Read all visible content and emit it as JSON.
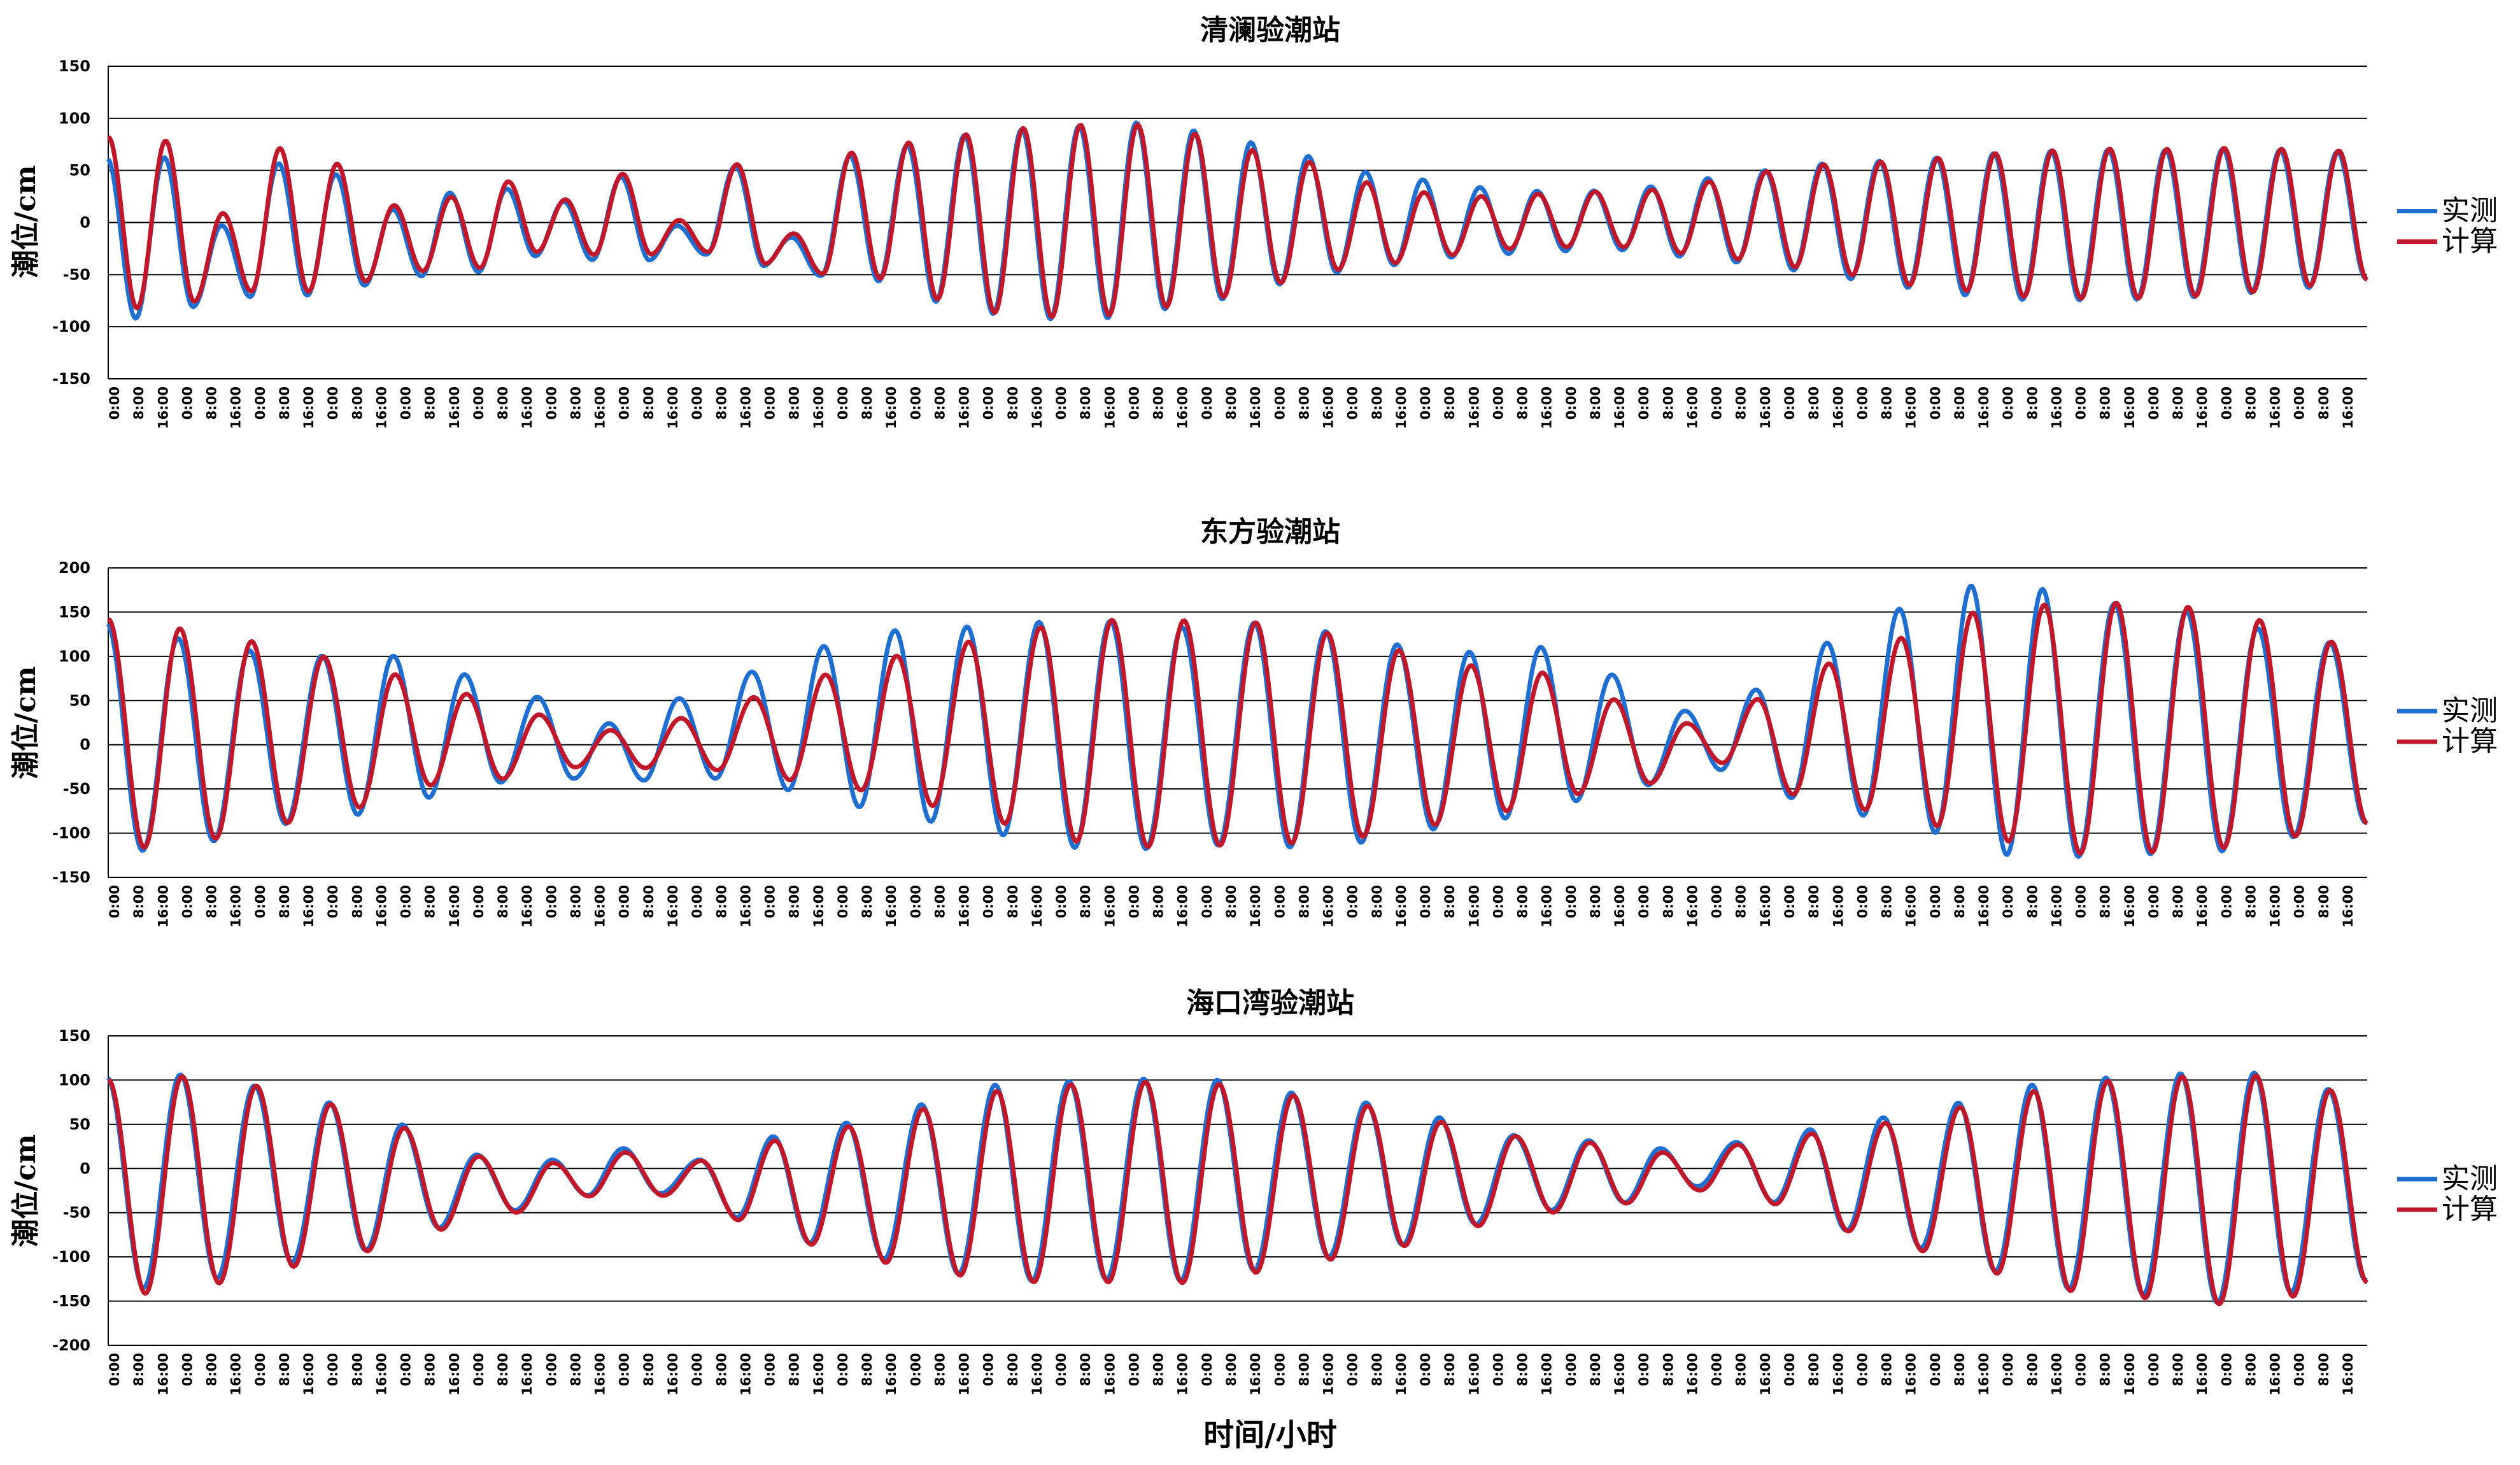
{
  "x_axis_label": "时间/小时",
  "legend": {
    "measured": "实测",
    "computed": "计算"
  },
  "colors": {
    "measured": "#1f6fd1",
    "computed": "#c0182a",
    "grid": "#000000"
  },
  "chart_data": [
    {
      "type": "line",
      "title": "清澜验潮站",
      "ylabel": "潮位/cm",
      "ylim": [
        -150,
        150
      ],
      "yticks": [
        "150",
        "100",
        "50",
        "0",
        "-50",
        "-100",
        "-150"
      ],
      "xtick_labels": [
        "0:00",
        "8:00",
        "16:00",
        "0:00",
        "8:00",
        "16:00",
        "0:00",
        "8:00",
        "16:00",
        "0:00",
        "8:00",
        "16:00",
        "0:00",
        "8:00",
        "16:00",
        "0:00",
        "8:00",
        "16:00",
        "0:00",
        "8:00",
        "16:00",
        "0:00",
        "8:00",
        "16:00",
        "0:00",
        "8:00",
        "16:00",
        "0:00",
        "8:00",
        "16:00",
        "0:00",
        "8:00",
        "16:00",
        "0:00",
        "8:00",
        "16:00",
        "0:00",
        "8:00",
        "16:00",
        "0:00",
        "8:00",
        "16:00",
        "0:00",
        "8:00",
        "16:00",
        "0:00",
        "8:00",
        "16:00",
        "0:00",
        "8:00",
        "16:00",
        "0:00",
        "8:00",
        "16:00",
        "0:00",
        "8:00",
        "16:00",
        "0:00",
        "8:00",
        "16:00",
        "0:00",
        "8:00",
        "16:00",
        "0:00",
        "8:00",
        "16:00",
        "0:00",
        "8:00",
        "16:00",
        "0:00",
        "8:00",
        "16:00",
        "0:00",
        "8:00",
        "16:00",
        "0:00",
        "8:00",
        "16:00",
        "0:00",
        "8:00",
        "16:00",
        "0:00",
        "8:00",
        "16:00",
        "0:00",
        "8:00",
        "16:00",
        "0:00",
        "8:00",
        "16:00",
        "0:00",
        "8:00",
        "16:00"
      ],
      "tide_kind": "diurnal",
      "series": [
        {
          "name": "实测",
          "peaks": [
            [
              62,
              -92
            ],
            [
              62,
              -80
            ],
            [
              -4,
              -70
            ],
            [
              55,
              -68
            ],
            [
              44,
              -58
            ],
            [
              10,
              -49
            ],
            [
              26,
              -45
            ],
            [
              30,
              -30
            ],
            [
              18,
              -34
            ],
            [
              42,
              -35
            ],
            [
              -4,
              -30
            ],
            [
              54,
              -42
            ],
            [
              -14,
              -52
            ],
            [
              65,
              -58
            ],
            [
              76,
              -78
            ],
            [
              86,
              -90
            ],
            [
              92,
              -95
            ],
            [
              95,
              -94
            ],
            [
              98,
              -85
            ],
            [
              90,
              -75
            ],
            [
              78,
              -60
            ],
            [
              64,
              -48
            ],
            [
              48,
              -40
            ],
            [
              40,
              -32
            ],
            [
              32,
              -28
            ],
            [
              28,
              -25
            ],
            [
              28,
              -24
            ],
            [
              32,
              -30
            ],
            [
              40,
              -36
            ],
            [
              48,
              -44
            ],
            [
              55,
              -53
            ],
            [
              58,
              -62
            ],
            [
              62,
              -70
            ],
            [
              67,
              -75
            ],
            [
              70,
              -76
            ],
            [
              72,
              -76
            ],
            [
              72,
              -74
            ],
            [
              73,
              -70
            ],
            [
              72,
              -65
            ],
            [
              70,
              -56
            ]
          ]
        },
        {
          "name": "计算",
          "peaks": [
            [
              82,
              -82
            ],
            [
              78,
              -75
            ],
            [
              8,
              -65
            ],
            [
              70,
              -65
            ],
            [
              55,
              -55
            ],
            [
              15,
              -45
            ],
            [
              23,
              -42
            ],
            [
              38,
              -27
            ],
            [
              21,
              -30
            ],
            [
              46,
              -30
            ],
            [
              2,
              -28
            ],
            [
              56,
              -40
            ],
            [
              -10,
              -50
            ],
            [
              68,
              -55
            ],
            [
              78,
              -75
            ],
            [
              86,
              -88
            ],
            [
              92,
              -92
            ],
            [
              95,
              -90
            ],
            [
              95,
              -82
            ],
            [
              86,
              -72
            ],
            [
              70,
              -58
            ],
            [
              58,
              -45
            ],
            [
              38,
              -38
            ],
            [
              28,
              -30
            ],
            [
              24,
              -24
            ],
            [
              26,
              -22
            ],
            [
              28,
              -22
            ],
            [
              30,
              -28
            ],
            [
              38,
              -34
            ],
            [
              48,
              -42
            ],
            [
              55,
              -50
            ],
            [
              58,
              -60
            ],
            [
              62,
              -66
            ],
            [
              67,
              -72
            ],
            [
              70,
              -74
            ],
            [
              72,
              -74
            ],
            [
              72,
              -72
            ],
            [
              73,
              -68
            ],
            [
              72,
              -62
            ],
            [
              70,
              -56
            ]
          ]
        }
      ]
    },
    {
      "type": "line",
      "title": "东方验潮站",
      "ylabel": "潮位/cm",
      "ylim": [
        -150,
        200
      ],
      "yticks": [
        "200",
        "150",
        "100",
        "50",
        "0",
        "-50",
        "-100",
        "-150"
      ],
      "xtick_labels": [
        "0:00",
        "8:00",
        "16:00",
        "0:00",
        "8:00",
        "16:00",
        "0:00",
        "8:00",
        "16:00",
        "0:00",
        "8:00",
        "16:00",
        "0:00",
        "8:00",
        "16:00",
        "0:00",
        "8:00",
        "16:00",
        "0:00",
        "8:00",
        "16:00",
        "0:00",
        "8:00",
        "16:00",
        "0:00",
        "8:00",
        "16:00",
        "0:00",
        "8:00",
        "16:00",
        "0:00",
        "8:00",
        "16:00",
        "0:00",
        "8:00",
        "16:00",
        "0:00",
        "8:00",
        "16:00",
        "0:00",
        "8:00",
        "16:00",
        "0:00",
        "8:00",
        "16:00",
        "0:00",
        "8:00",
        "16:00",
        "0:00",
        "8:00",
        "16:00",
        "0:00",
        "8:00",
        "16:00",
        "0:00",
        "8:00",
        "16:00",
        "0:00",
        "8:00",
        "16:00",
        "0:00",
        "8:00",
        "16:00",
        "0:00",
        "8:00",
        "16:00",
        "0:00",
        "8:00",
        "16:00",
        "0:00",
        "8:00",
        "16:00",
        "0:00",
        "8:00",
        "16:00",
        "0:00",
        "8:00",
        "16:00",
        "0:00",
        "8:00",
        "16:00",
        "0:00",
        "8:00",
        "16:00",
        "0:00",
        "8:00",
        "16:00",
        "0:00",
        "8:00",
        "16:00",
        "0:00",
        "8:00",
        "16:00"
      ],
      "tide_kind": "diurnal",
      "series": [
        {
          "name": "实测",
          "peaks": [
            [
              138,
              -118
            ],
            [
              118,
              -108
            ],
            [
              108,
              -92
            ],
            [
              102,
              -78
            ],
            [
              98,
              -58
            ],
            [
              80,
              -45
            ],
            [
              56,
              -38
            ],
            [
              22,
              -38
            ],
            [
              52,
              -40
            ],
            [
              85,
              -52
            ],
            [
              110,
              -68
            ],
            [
              128,
              -88
            ],
            [
              136,
              -104
            ],
            [
              138,
              -114
            ],
            [
              138,
              -118
            ],
            [
              135,
              -116
            ],
            [
              138,
              -114
            ],
            [
              126,
              -110
            ],
            [
              115,
              -98
            ],
            [
              106,
              -82
            ],
            [
              108,
              -62
            ],
            [
              80,
              -48
            ],
            [
              40,
              -28
            ],
            [
              60,
              -58
            ],
            [
              115,
              -82
            ],
            [
              156,
              -100
            ],
            [
              178,
              -122
            ],
            [
              175,
              -128
            ],
            [
              162,
              -125
            ],
            [
              150,
              -118
            ],
            [
              130,
              -105
            ],
            [
              118,
              -90
            ]
          ]
        },
        {
          "name": "计算",
          "peaks": [
            [
              142,
              -115
            ],
            [
              130,
              -106
            ],
            [
              118,
              -90
            ],
            [
              100,
              -70
            ],
            [
              78,
              -45
            ],
            [
              58,
              -40
            ],
            [
              35,
              -25
            ],
            [
              15,
              -25
            ],
            [
              30,
              -30
            ],
            [
              55,
              -40
            ],
            [
              78,
              -50
            ],
            [
              100,
              -70
            ],
            [
              118,
              -90
            ],
            [
              132,
              -108
            ],
            [
              140,
              -116
            ],
            [
              142,
              -115
            ],
            [
              138,
              -110
            ],
            [
              125,
              -104
            ],
            [
              108,
              -92
            ],
            [
              90,
              -74
            ],
            [
              80,
              -55
            ],
            [
              52,
              -45
            ],
            [
              25,
              -20
            ],
            [
              50,
              -55
            ],
            [
              92,
              -75
            ],
            [
              122,
              -92
            ],
            [
              148,
              -108
            ],
            [
              158,
              -124
            ],
            [
              162,
              -122
            ],
            [
              155,
              -115
            ],
            [
              140,
              -104
            ],
            [
              118,
              -90
            ]
          ]
        }
      ]
    },
    {
      "type": "line",
      "title": "海口湾验潮站",
      "ylabel": "潮位/cm",
      "ylim": [
        -200,
        150
      ],
      "yticks": [
        "150",
        "100",
        "50",
        "0",
        "-50",
        "-100",
        "-150",
        "-200"
      ],
      "xtick_labels": [
        "0:00",
        "8:00",
        "16:00",
        "0:00",
        "8:00",
        "16:00",
        "0:00",
        "8:00",
        "16:00",
        "0:00",
        "8:00",
        "16:00",
        "0:00",
        "8:00",
        "16:00",
        "0:00",
        "8:00",
        "16:00",
        "0:00",
        "8:00",
        "16:00",
        "0:00",
        "8:00",
        "16:00",
        "0:00",
        "8:00",
        "16:00",
        "0:00",
        "8:00",
        "16:00",
        "0:00",
        "8:00",
        "16:00",
        "0:00",
        "8:00",
        "16:00",
        "0:00",
        "8:00",
        "16:00",
        "0:00",
        "8:00",
        "16:00",
        "0:00",
        "8:00",
        "16:00",
        "0:00",
        "8:00",
        "16:00",
        "0:00",
        "8:00",
        "16:00",
        "0:00",
        "8:00",
        "16:00",
        "0:00",
        "8:00",
        "16:00",
        "0:00",
        "8:00",
        "16:00",
        "0:00",
        "8:00",
        "16:00",
        "0:00",
        "8:00",
        "16:00",
        "0:00",
        "8:00",
        "16:00",
        "0:00",
        "8:00",
        "16:00",
        "0:00",
        "8:00",
        "16:00",
        "0:00",
        "8:00",
        "16:00",
        "0:00",
        "8:00",
        "16:00",
        "0:00",
        "8:00",
        "16:00",
        "0:00",
        "8:00",
        "16:00",
        "0:00",
        "8:00",
        "16:00",
        "0:00",
        "8:00",
        "16:00"
      ],
      "tide_kind": "diurnal",
      "series": [
        {
          "name": "实测",
          "peaks": [
            [
              104,
              -133
            ],
            [
              104,
              -124
            ],
            [
              96,
              -108
            ],
            [
              74,
              -90
            ],
            [
              48,
              -68
            ],
            [
              18,
              -48
            ],
            [
              8,
              -28
            ],
            [
              22,
              -30
            ],
            [
              12,
              -55
            ],
            [
              34,
              -82
            ],
            [
              52,
              -105
            ],
            [
              74,
              -118
            ],
            [
              92,
              -126
            ],
            [
              100,
              -128
            ],
            [
              102,
              -125
            ],
            [
              98,
              -115
            ],
            [
              88,
              -102
            ],
            [
              74,
              -84
            ],
            [
              56,
              -64
            ],
            [
              40,
              -48
            ],
            [
              30,
              -36
            ],
            [
              22,
              -22
            ],
            [
              32,
              -38
            ],
            [
              42,
              -68
            ],
            [
              58,
              -92
            ],
            [
              76,
              -115
            ],
            [
              92,
              -135
            ],
            [
              104,
              -145
            ],
            [
              108,
              -150
            ],
            [
              106,
              -140
            ],
            [
              92,
              -128
            ]
          ]
        },
        {
          "name": "计算",
          "peaks": [
            [
              100,
              -140
            ],
            [
              103,
              -130
            ],
            [
              95,
              -112
            ],
            [
              72,
              -92
            ],
            [
              45,
              -70
            ],
            [
              15,
              -50
            ],
            [
              5,
              -30
            ],
            [
              18,
              -32
            ],
            [
              10,
              -58
            ],
            [
              30,
              -85
            ],
            [
              48,
              -108
            ],
            [
              68,
              -120
            ],
            [
              86,
              -128
            ],
            [
              96,
              -130
            ],
            [
              98,
              -128
            ],
            [
              94,
              -118
            ],
            [
              84,
              -104
            ],
            [
              70,
              -86
            ],
            [
              52,
              -66
            ],
            [
              38,
              -50
            ],
            [
              28,
              -38
            ],
            [
              18,
              -26
            ],
            [
              28,
              -40
            ],
            [
              38,
              -70
            ],
            [
              52,
              -95
            ],
            [
              70,
              -118
            ],
            [
              86,
              -138
            ],
            [
              100,
              -148
            ],
            [
              104,
              -152
            ],
            [
              104,
              -145
            ],
            [
              90,
              -130
            ]
          ]
        }
      ]
    }
  ]
}
